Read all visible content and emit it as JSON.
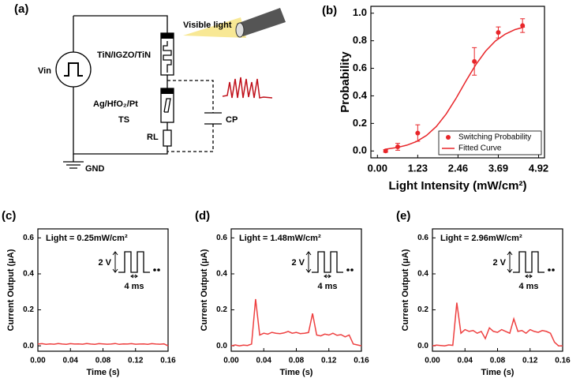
{
  "diagram": {
    "panel_label": "(a)",
    "light": "Visible light",
    "top_device": "TiN/IGZO/TiN",
    "source": "Vin",
    "ts_device": "Ag/HfO₂/Pt",
    "ts": "TS",
    "resistor": "RL",
    "capacitor": "CP",
    "ground": "GND"
  },
  "chart_data": [
    {
      "type": "scatter",
      "panel_label": "(b)",
      "xlabel": "Light Intensity (mW/cm²)",
      "ylabel": "Probability",
      "xlim": [
        -0.2,
        5.1
      ],
      "ylim": [
        -0.05,
        1.05
      ],
      "xticks": [
        {
          "value": 0,
          "label": "0.00"
        },
        1.23,
        2.46,
        3.69,
        4.92
      ],
      "yticks": [
        {
          "value": 0,
          "label": "0.0"
        },
        0.2,
        0.4,
        0.6,
        0.8,
        {
          "value": 1,
          "label": "1.0"
        }
      ],
      "legend": "lower right",
      "series": [
        {
          "name": "Switching Probability",
          "color": "#e8262a",
          "mode": "points",
          "x": [
            0.25,
            0.62,
            1.23,
            2.96,
            3.69,
            4.43
          ],
          "values": [
            0.0,
            0.03,
            0.13,
            0.65,
            0.86,
            0.91
          ],
          "errors": [
            0.01,
            0.025,
            0.06,
            0.1,
            0.04,
            0.05
          ]
        },
        {
          "name": "Fitted Curve",
          "color": "#e8262a",
          "mode": "line",
          "x": [
            0.25,
            0.6,
            0.9,
            1.2,
            1.5,
            1.8,
            2.1,
            2.4,
            2.7,
            3.0,
            3.3,
            3.6,
            3.9,
            4.2,
            4.5
          ],
          "values": [
            0.013,
            0.025,
            0.042,
            0.069,
            0.113,
            0.178,
            0.269,
            0.382,
            0.507,
            0.625,
            0.724,
            0.798,
            0.848,
            0.881,
            0.901
          ]
        }
      ]
    },
    {
      "type": "line",
      "panel_label": "(c)",
      "annotation": "Light = 0.25mW/cm²",
      "pulse_height": "2 V",
      "pulse_width": "4 ms",
      "xlabel": "Time (s)",
      "ylabel": "Current Output (μA)",
      "xlim": [
        0,
        0.16
      ],
      "ylim": [
        -0.03,
        0.65
      ],
      "xticks": [
        {
          "value": 0,
          "label": "0.00"
        },
        0.04,
        0.08,
        0.12,
        0.16
      ],
      "yticks": [
        {
          "value": 0,
          "label": "0.0"
        },
        0.2,
        0.4,
        0.6
      ],
      "series": [
        {
          "color": "#ee4040",
          "x": [
            0,
            0.005,
            0.01,
            0.015,
            0.02,
            0.025,
            0.03,
            0.035,
            0.04,
            0.045,
            0.05,
            0.055,
            0.06,
            0.065,
            0.07,
            0.075,
            0.08,
            0.085,
            0.09,
            0.095,
            0.1,
            0.105,
            0.11,
            0.115,
            0.12,
            0.125,
            0.13,
            0.135,
            0.14,
            0.145,
            0.15,
            0.155,
            0.16
          ],
          "values": [
            0.01,
            0.012,
            0.008,
            0.011,
            0.009,
            0.013,
            0.01,
            0.008,
            0.012,
            0.01,
            0.011,
            0.009,
            0.013,
            0.01,
            0.008,
            0.012,
            0.011,
            0.009,
            0.01,
            0.013,
            0.008,
            0.011,
            0.01,
            0.012,
            0.009,
            0.01,
            0.011,
            0.008,
            0.012,
            0.01,
            0.009,
            0.011,
            0.0
          ]
        }
      ]
    },
    {
      "type": "line",
      "panel_label": "(d)",
      "annotation": "Light = 1.48mW/cm²",
      "pulse_height": "2 V",
      "pulse_width": "4 ms",
      "xlabel": "Time (s)",
      "ylabel": "Current Output (μA)",
      "xlim": [
        0,
        0.16
      ],
      "ylim": [
        -0.03,
        0.65
      ],
      "xticks": [
        {
          "value": 0,
          "label": "0.00"
        },
        0.04,
        0.08,
        0.12,
        0.16
      ],
      "yticks": [
        {
          "value": 0,
          "label": "0.0"
        },
        0.2,
        0.4,
        0.6
      ],
      "series": [
        {
          "color": "#ee4040",
          "x": [
            0,
            0.005,
            0.01,
            0.015,
            0.02,
            0.025,
            0.03,
            0.035,
            0.04,
            0.045,
            0.05,
            0.055,
            0.06,
            0.065,
            0.07,
            0.075,
            0.08,
            0.085,
            0.09,
            0.095,
            0.1,
            0.105,
            0.11,
            0.115,
            0.12,
            0.125,
            0.13,
            0.135,
            0.14,
            0.145,
            0.15,
            0.155,
            0.16
          ],
          "values": [
            0.0,
            0.005,
            0.0,
            0.004,
            0.002,
            0.01,
            0.26,
            0.06,
            0.07,
            0.065,
            0.075,
            0.07,
            0.068,
            0.072,
            0.08,
            0.07,
            0.075,
            0.068,
            0.07,
            0.074,
            0.18,
            0.06,
            0.055,
            0.065,
            0.06,
            0.07,
            0.058,
            0.062,
            0.05,
            0.06,
            0.01,
            0.005,
            0.0
          ]
        }
      ]
    },
    {
      "type": "line",
      "panel_label": "(e)",
      "annotation": "Light = 2.96mW/cm²",
      "pulse_height": "2 V",
      "pulse_width": "4 ms",
      "xlabel": "Time (s)",
      "ylabel": "Current Output (μA)",
      "xlim": [
        0,
        0.16
      ],
      "ylim": [
        -0.03,
        0.65
      ],
      "xticks": [
        {
          "value": 0,
          "label": "0.00"
        },
        0.04,
        0.08,
        0.12,
        0.16
      ],
      "yticks": [
        {
          "value": 0,
          "label": "0.0"
        },
        0.2,
        0.4,
        0.6
      ],
      "series": [
        {
          "color": "#ee4040",
          "x": [
            0,
            0.005,
            0.01,
            0.015,
            0.02,
            0.025,
            0.03,
            0.035,
            0.04,
            0.045,
            0.05,
            0.055,
            0.06,
            0.065,
            0.07,
            0.075,
            0.08,
            0.085,
            0.09,
            0.095,
            0.1,
            0.105,
            0.11,
            0.115,
            0.12,
            0.125,
            0.13,
            0.135,
            0.14,
            0.145,
            0.15,
            0.155,
            0.16
          ],
          "values": [
            0.0,
            0.004,
            0.002,
            0.0,
            0.005,
            0.003,
            0.24,
            0.07,
            0.09,
            0.08,
            0.085,
            0.07,
            0.08,
            0.04,
            0.1,
            0.08,
            0.075,
            0.09,
            0.08,
            0.07,
            0.15,
            0.08,
            0.085,
            0.07,
            0.09,
            0.08,
            0.075,
            0.085,
            0.08,
            0.07,
            0.02,
            0.0,
            0.0
          ]
        }
      ]
    }
  ]
}
